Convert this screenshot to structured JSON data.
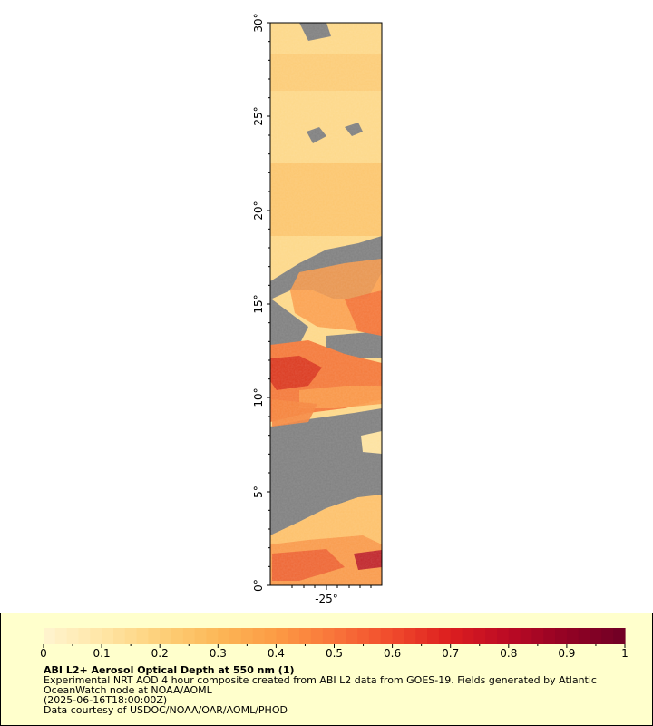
{
  "map": {
    "lat_ticks": [
      "30°",
      "25°",
      "20°",
      "15°",
      "10°",
      "5°",
      "0°"
    ],
    "lon_ticks": [
      "-25°"
    ]
  },
  "colorbar": {
    "ticks": [
      "0",
      "0.1",
      "0.2",
      "0.3",
      "0.4",
      "0.5",
      "0.6",
      "0.7",
      "0.8",
      "0.9",
      "1"
    ],
    "colors": [
      "#fff4d0",
      "#ffe6a6",
      "#fdd07a",
      "#fcb757",
      "#fc9b44",
      "#f9743a",
      "#f04a2c",
      "#dc1e1f",
      "#bb0a24",
      "#920224",
      "#700025"
    ],
    "no_data_color": "#808080",
    "panel_background": "#ffffcc"
  },
  "caption": {
    "title": "ABI L2+ Aerosol Optical Depth at 550 nm (1)",
    "line1": "Experimental NRT AOD 4 hour composite created from ABI L2 data from GOES-19. Fields generated by Atlantic",
    "line2": "OceanWatch node at NOAA/AOML",
    "line3": "(2025-06-16T18:00:00Z)",
    "line4": "Data courtesy of USDOC/NOAA/OAR/AOML/PHOD"
  }
}
